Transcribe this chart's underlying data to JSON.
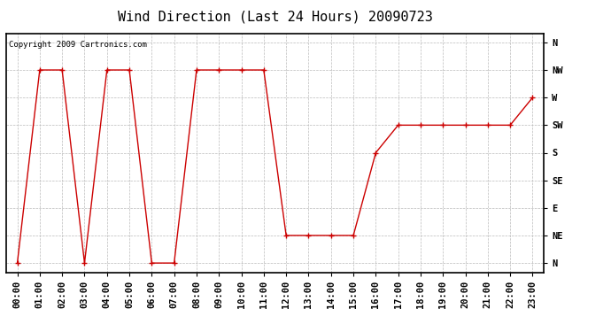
{
  "title": "Wind Direction (Last 24 Hours) 20090723",
  "copyright_text": "Copyright 2009 Cartronics.com",
  "hours": [
    0,
    1,
    2,
    3,
    4,
    5,
    6,
    7,
    8,
    9,
    10,
    11,
    12,
    13,
    14,
    15,
    16,
    17,
    18,
    19,
    20,
    21,
    22,
    23
  ],
  "hour_labels": [
    "00:00",
    "01:00",
    "02:00",
    "03:00",
    "04:00",
    "05:00",
    "06:00",
    "07:00",
    "08:00",
    "09:00",
    "10:00",
    "11:00",
    "12:00",
    "13:00",
    "14:00",
    "15:00",
    "16:00",
    "17:00",
    "18:00",
    "19:00",
    "20:00",
    "21:00",
    "22:00",
    "23:00"
  ],
  "wind_values": [
    0,
    315,
    315,
    0,
    315,
    315,
    0,
    0,
    315,
    315,
    315,
    315,
    45,
    45,
    45,
    45,
    180,
    225,
    225,
    225,
    225,
    225,
    225,
    270
  ],
  "ytick_labels": [
    "N",
    "NE",
    "E",
    "SE",
    "S",
    "SW",
    "W",
    "NW",
    "N"
  ],
  "ytick_values": [
    0,
    45,
    90,
    135,
    180,
    225,
    270,
    315,
    360
  ],
  "line_color": "#cc0000",
  "marker": "+",
  "marker_size": 5,
  "marker_linewidth": 1.0,
  "line_width": 1.0,
  "bg_color": "#ffffff",
  "grid_color": "#bbbbbb",
  "title_fontsize": 11,
  "tick_fontsize": 7.5,
  "copyright_fontsize": 6.5,
  "ylim": [
    -15,
    375
  ],
  "xlim": [
    -0.5,
    23.5
  ]
}
